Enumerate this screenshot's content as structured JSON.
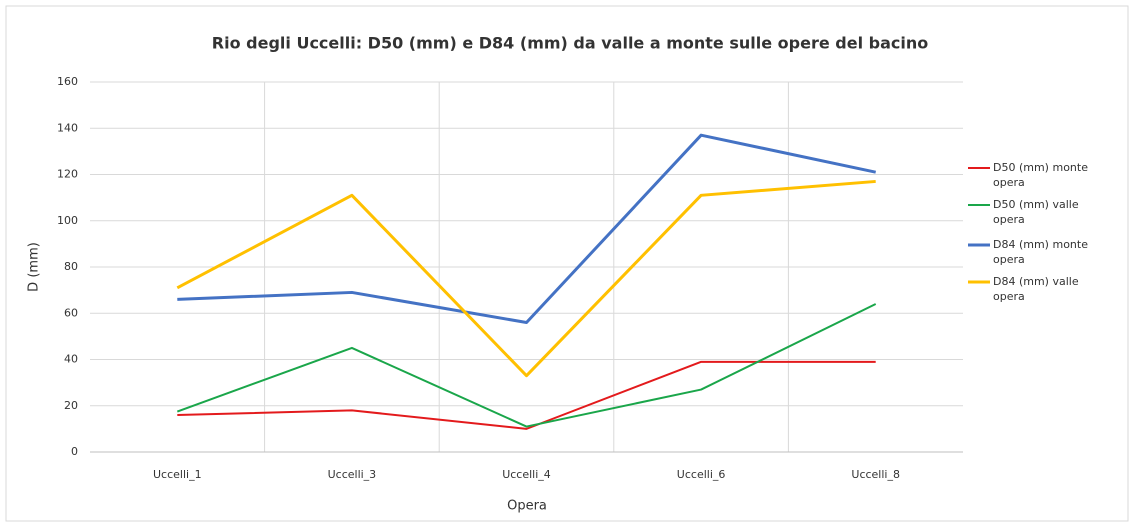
{
  "chart_data": {
    "type": "line",
    "title": "Rio degli Uccelli: D50 (mm) e D84 (mm) da valle a monte sulle opere del bacino",
    "x_label": "Opera",
    "y_label": "D (mm)",
    "categories": [
      "Uccelli_1",
      "Uccelli_3",
      "Uccelli_4",
      "Uccelli_6",
      "Uccelli_8"
    ],
    "series": [
      {
        "name": "D50 (mm) monte opera",
        "color": "#e31a1c",
        "values": [
          16,
          18,
          10,
          39,
          39
        ]
      },
      {
        "name": "D50 (mm) valle opera",
        "color": "#1aa64a",
        "values": [
          17.5,
          45,
          11,
          27,
          64
        ]
      },
      {
        "name": "D84 (mm) monte opera",
        "color": "#4472c4",
        "values": [
          66,
          69,
          56,
          137,
          121
        ]
      },
      {
        "name": "D84 (mm) valle opera",
        "color": "#ffc000",
        "values": [
          71,
          111,
          33,
          111,
          117
        ]
      }
    ],
    "ylim": [
      0,
      160
    ],
    "yticks": [
      0,
      20,
      40,
      60,
      80,
      100,
      120,
      140,
      160
    ],
    "grid": true,
    "legend": "right"
  }
}
